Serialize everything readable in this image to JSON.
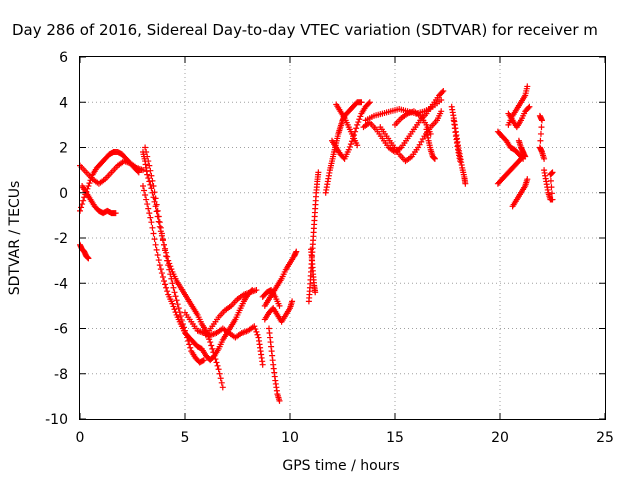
{
  "chart_data": {
    "type": "scatter",
    "title": "Day 286 of 2016, Sidereal Day-to-day VTEC variation (SDTVAR) for receiver m",
    "xlabel": "GPS time / hours",
    "ylabel": "SDTVAR / TECUs",
    "xlim": [
      0,
      25
    ],
    "ylim": [
      -10,
      6
    ],
    "xticks": [
      "0",
      "5",
      "10",
      "15",
      "20",
      "25"
    ],
    "yticks": [
      "-10",
      "-8",
      "-6",
      "-4",
      "-2",
      "0",
      "2",
      "4",
      "6"
    ],
    "grid": true,
    "marker": "+",
    "color": "#ff0000",
    "segments": [
      [
        [
          0.0,
          -0.8
        ],
        [
          0.2,
          -0.2
        ],
        [
          0.4,
          0.3
        ],
        [
          0.6,
          0.8
        ],
        [
          0.8,
          1.1
        ],
        [
          1.0,
          1.3
        ],
        [
          1.2,
          1.5
        ],
        [
          1.4,
          1.7
        ],
        [
          1.6,
          1.8
        ],
        [
          1.8,
          1.8
        ],
        [
          2.0,
          1.7
        ],
        [
          2.2,
          1.5
        ],
        [
          2.4,
          1.3
        ],
        [
          2.6,
          1.1
        ],
        [
          2.8,
          0.9
        ]
      ],
      [
        [
          0.0,
          1.2
        ],
        [
          0.3,
          0.9
        ],
        [
          0.6,
          0.6
        ],
        [
          0.9,
          0.4
        ],
        [
          1.2,
          0.6
        ],
        [
          1.5,
          0.9
        ],
        [
          1.8,
          1.2
        ],
        [
          2.1,
          1.4
        ],
        [
          2.4,
          1.3
        ],
        [
          2.7,
          1.1
        ],
        [
          3.0,
          1.0
        ]
      ],
      [
        [
          0.0,
          -2.3
        ],
        [
          0.1,
          -2.5
        ],
        [
          0.2,
          -2.6
        ],
        [
          0.3,
          -2.8
        ],
        [
          0.4,
          -2.9
        ]
      ],
      [
        [
          0.1,
          0.3
        ],
        [
          0.3,
          0.0
        ],
        [
          0.5,
          -0.3
        ],
        [
          0.7,
          -0.6
        ],
        [
          0.9,
          -0.8
        ],
        [
          1.1,
          -0.9
        ],
        [
          1.3,
          -0.8
        ],
        [
          1.5,
          -0.9
        ],
        [
          1.7,
          -0.9
        ]
      ],
      [
        [
          3.0,
          1.8
        ],
        [
          3.1,
          1.4
        ],
        [
          3.2,
          0.8
        ],
        [
          3.4,
          0.2
        ],
        [
          3.6,
          -0.6
        ],
        [
          3.8,
          -1.5
        ],
        [
          4.0,
          -2.3
        ],
        [
          4.2,
          -3.0
        ],
        [
          4.4,
          -3.5
        ],
        [
          4.6,
          -3.9
        ],
        [
          4.8,
          -4.2
        ],
        [
          5.0,
          -4.5
        ],
        [
          5.2,
          -4.8
        ],
        [
          5.4,
          -5.1
        ],
        [
          5.6,
          -5.4
        ],
        [
          5.8,
          -5.8
        ],
        [
          6.0,
          -6.1
        ],
        [
          6.2,
          -6.6
        ],
        [
          6.4,
          -7.2
        ],
        [
          6.6,
          -7.8
        ],
        [
          6.8,
          -8.6
        ]
      ],
      [
        [
          3.1,
          2.0
        ],
        [
          3.3,
          1.2
        ],
        [
          3.5,
          0.3
        ],
        [
          3.7,
          -0.8
        ],
        [
          3.9,
          -1.8
        ],
        [
          4.1,
          -2.8
        ],
        [
          4.3,
          -3.6
        ],
        [
          4.5,
          -4.4
        ],
        [
          4.7,
          -5.1
        ],
        [
          4.9,
          -5.8
        ],
        [
          5.1,
          -6.4
        ],
        [
          5.3,
          -7.0
        ],
        [
          5.5,
          -7.3
        ],
        [
          5.7,
          -7.5
        ],
        [
          5.9,
          -7.4
        ]
      ],
      [
        [
          3.0,
          0.3
        ],
        [
          3.2,
          -0.5
        ],
        [
          3.4,
          -1.3
        ],
        [
          3.6,
          -2.3
        ],
        [
          3.8,
          -3.2
        ],
        [
          4.0,
          -3.9
        ],
        [
          4.2,
          -4.5
        ],
        [
          4.4,
          -4.9
        ],
        [
          4.6,
          -5.4
        ],
        [
          4.8,
          -5.8
        ],
        [
          5.0,
          -6.2
        ],
        [
          5.2,
          -6.4
        ],
        [
          5.4,
          -6.6
        ],
        [
          5.6,
          -6.8
        ],
        [
          5.8,
          -6.9
        ],
        [
          6.0,
          -7.2
        ],
        [
          6.2,
          -7.4
        ],
        [
          6.4,
          -7.2
        ],
        [
          6.6,
          -6.9
        ],
        [
          6.8,
          -6.5
        ],
        [
          7.0,
          -6.2
        ],
        [
          7.2,
          -5.9
        ],
        [
          7.4,
          -5.6
        ],
        [
          7.6,
          -5.2
        ],
        [
          7.8,
          -4.8
        ],
        [
          8.0,
          -4.5
        ],
        [
          8.2,
          -4.3
        ]
      ],
      [
        [
          5.0,
          -5.3
        ],
        [
          5.3,
          -5.7
        ],
        [
          5.6,
          -6.1
        ],
        [
          5.9,
          -6.2
        ],
        [
          6.2,
          -6.3
        ],
        [
          6.5,
          -6.2
        ],
        [
          6.8,
          -6.0
        ],
        [
          7.1,
          -6.2
        ],
        [
          7.4,
          -6.4
        ],
        [
          7.7,
          -6.2
        ],
        [
          8.0,
          -6.1
        ],
        [
          8.3,
          -5.9
        ],
        [
          8.5,
          -6.4
        ],
        [
          8.6,
          -7.0
        ],
        [
          8.7,
          -7.6
        ]
      ],
      [
        [
          6.0,
          -6.3
        ],
        [
          6.3,
          -5.9
        ],
        [
          6.6,
          -5.5
        ],
        [
          6.9,
          -5.2
        ],
        [
          7.2,
          -5.0
        ],
        [
          7.5,
          -4.7
        ],
        [
          7.8,
          -4.5
        ],
        [
          8.1,
          -4.4
        ],
        [
          8.4,
          -4.3
        ]
      ],
      [
        [
          8.8,
          -5.0
        ],
        [
          9.0,
          -4.7
        ],
        [
          9.2,
          -4.4
        ],
        [
          9.4,
          -4.1
        ],
        [
          9.6,
          -3.8
        ],
        [
          9.8,
          -3.4
        ],
        [
          10.0,
          -3.1
        ],
        [
          10.2,
          -2.8
        ],
        [
          10.3,
          -2.6
        ]
      ],
      [
        [
          8.8,
          -5.6
        ],
        [
          9.0,
          -5.3
        ],
        [
          9.2,
          -5.1
        ],
        [
          9.4,
          -5.4
        ],
        [
          9.6,
          -5.7
        ],
        [
          9.8,
          -5.4
        ],
        [
          10.0,
          -5.1
        ],
        [
          10.1,
          -4.8
        ]
      ],
      [
        [
          9.0,
          -6.0
        ],
        [
          9.1,
          -6.8
        ],
        [
          9.2,
          -7.6
        ],
        [
          9.3,
          -8.3
        ],
        [
          9.4,
          -8.9
        ],
        [
          9.5,
          -9.2
        ]
      ],
      [
        [
          8.7,
          -4.6
        ],
        [
          8.9,
          -4.4
        ],
        [
          9.1,
          -4.3
        ],
        [
          9.3,
          -4.6
        ],
        [
          9.5,
          -5.0
        ]
      ],
      [
        [
          10.9,
          -4.8
        ],
        [
          10.95,
          -4.2
        ],
        [
          11.0,
          -3.5
        ],
        [
          11.05,
          -2.8
        ],
        [
          11.1,
          -2.1
        ],
        [
          11.15,
          -1.4
        ],
        [
          11.2,
          -0.7
        ],
        [
          11.25,
          0.0
        ],
        [
          11.3,
          0.5
        ],
        [
          11.35,
          0.9
        ]
      ],
      [
        [
          11.0,
          -2.5
        ],
        [
          11.05,
          -3.0
        ],
        [
          11.1,
          -3.6
        ],
        [
          11.15,
          -4.1
        ],
        [
          11.2,
          -4.4
        ]
      ],
      [
        [
          11.7,
          0.0
        ],
        [
          11.8,
          0.5
        ],
        [
          11.9,
          1.0
        ],
        [
          12.0,
          1.4
        ],
        [
          12.1,
          1.8
        ],
        [
          12.2,
          2.2
        ],
        [
          12.3,
          2.6
        ],
        [
          12.4,
          2.9
        ],
        [
          12.5,
          3.2
        ],
        [
          12.6,
          3.4
        ],
        [
          12.8,
          3.6
        ],
        [
          13.0,
          3.8
        ],
        [
          13.2,
          4.0
        ],
        [
          13.4,
          4.0
        ]
      ],
      [
        [
          12.0,
          2.3
        ],
        [
          12.2,
          2.0
        ],
        [
          12.4,
          1.7
        ],
        [
          12.6,
          1.5
        ],
        [
          12.8,
          1.9
        ],
        [
          13.0,
          2.4
        ],
        [
          13.2,
          3.0
        ],
        [
          13.4,
          3.5
        ],
        [
          13.6,
          3.8
        ],
        [
          13.8,
          4.0
        ]
      ],
      [
        [
          12.2,
          3.9
        ],
        [
          12.4,
          3.6
        ],
        [
          12.6,
          3.3
        ],
        [
          12.8,
          2.9
        ],
        [
          13.0,
          2.5
        ],
        [
          13.2,
          2.1
        ]
      ],
      [
        [
          13.5,
          2.9
        ],
        [
          13.8,
          3.1
        ],
        [
          14.1,
          2.8
        ],
        [
          14.4,
          2.4
        ],
        [
          14.7,
          2.0
        ],
        [
          15.0,
          1.8
        ],
        [
          15.3,
          2.0
        ],
        [
          15.6,
          2.4
        ],
        [
          15.9,
          2.8
        ],
        [
          16.2,
          3.2
        ],
        [
          16.5,
          3.5
        ],
        [
          16.8,
          3.9
        ],
        [
          17.1,
          4.3
        ],
        [
          17.3,
          4.5
        ]
      ],
      [
        [
          13.6,
          3.2
        ],
        [
          14.0,
          3.4
        ],
        [
          14.4,
          3.5
        ],
        [
          14.8,
          3.6
        ],
        [
          15.2,
          3.7
        ],
        [
          15.6,
          3.6
        ],
        [
          16.0,
          3.5
        ],
        [
          16.4,
          3.6
        ],
        [
          16.8,
          3.8
        ],
        [
          17.2,
          4.1
        ]
      ],
      [
        [
          14.3,
          2.9
        ],
        [
          14.6,
          2.5
        ],
        [
          14.9,
          2.1
        ],
        [
          15.2,
          1.7
        ],
        [
          15.5,
          1.4
        ],
        [
          15.8,
          1.6
        ],
        [
          16.1,
          2.0
        ],
        [
          16.4,
          2.5
        ],
        [
          16.7,
          2.9
        ],
        [
          17.0,
          3.2
        ],
        [
          17.2,
          3.6
        ]
      ],
      [
        [
          15.0,
          3.0
        ],
        [
          15.3,
          3.3
        ],
        [
          15.6,
          3.5
        ],
        [
          15.9,
          3.6
        ],
        [
          16.2,
          3.4
        ],
        [
          16.5,
          3.0
        ],
        [
          16.7,
          2.6
        ]
      ],
      [
        [
          16.5,
          2.8
        ],
        [
          16.6,
          2.3
        ],
        [
          16.7,
          1.9
        ],
        [
          16.8,
          1.6
        ],
        [
          16.9,
          1.5
        ]
      ],
      [
        [
          17.7,
          3.8
        ],
        [
          17.8,
          3.3
        ],
        [
          17.9,
          2.7
        ],
        [
          18.0,
          2.1
        ],
        [
          18.1,
          1.6
        ],
        [
          18.2,
          1.1
        ],
        [
          18.3,
          0.7
        ],
        [
          18.35,
          0.4
        ]
      ],
      [
        [
          17.8,
          3.2
        ],
        [
          17.9,
          2.5
        ],
        [
          18.0,
          1.9
        ],
        [
          18.1,
          1.4
        ]
      ],
      [
        [
          19.9,
          2.7
        ],
        [
          20.1,
          2.5
        ],
        [
          20.3,
          2.3
        ],
        [
          20.5,
          2.0
        ],
        [
          20.7,
          1.9
        ],
        [
          20.9,
          1.7
        ],
        [
          21.1,
          1.5
        ]
      ],
      [
        [
          19.9,
          0.4
        ],
        [
          20.1,
          0.6
        ],
        [
          20.3,
          0.8
        ],
        [
          20.5,
          1.0
        ],
        [
          20.7,
          1.2
        ],
        [
          20.9,
          1.4
        ],
        [
          21.1,
          1.6
        ]
      ],
      [
        [
          20.4,
          3.0
        ],
        [
          20.6,
          3.4
        ],
        [
          20.8,
          3.7
        ],
        [
          21.0,
          4.0
        ],
        [
          21.2,
          4.3
        ],
        [
          21.3,
          4.7
        ]
      ],
      [
        [
          20.4,
          3.5
        ],
        [
          20.6,
          3.2
        ],
        [
          20.8,
          2.9
        ],
        [
          21.0,
          3.2
        ],
        [
          21.2,
          3.6
        ],
        [
          21.4,
          3.8
        ]
      ],
      [
        [
          20.6,
          -0.6
        ],
        [
          20.8,
          -0.3
        ],
        [
          21.0,
          0.0
        ],
        [
          21.2,
          0.3
        ],
        [
          21.3,
          0.6
        ]
      ],
      [
        [
          20.9,
          2.3
        ],
        [
          21.0,
          2.0
        ],
        [
          21.1,
          1.8
        ],
        [
          21.2,
          1.6
        ]
      ],
      [
        [
          21.9,
          3.4
        ],
        [
          22.0,
          3.2
        ],
        [
          21.9,
          2.0
        ],
        [
          22.0,
          1.8
        ],
        [
          22.1,
          1.5
        ]
      ],
      [
        [
          22.1,
          1.0
        ],
        [
          22.2,
          0.5
        ],
        [
          22.3,
          0.0
        ],
        [
          22.4,
          -0.3
        ],
        [
          22.5,
          -0.3
        ],
        [
          22.4,
          0.8
        ],
        [
          22.5,
          0.9
        ]
      ]
    ]
  }
}
